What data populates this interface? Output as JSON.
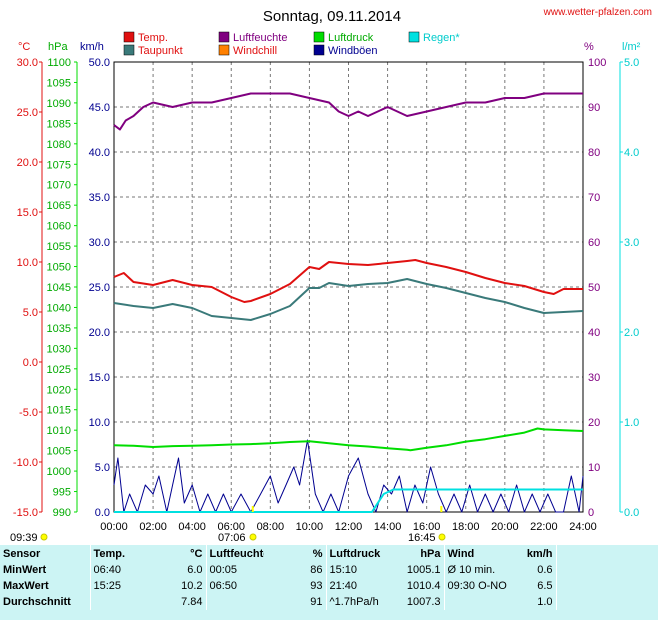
{
  "header": {
    "title": "Sonntag, 09.11.2014",
    "site": "www.wetter-pfalzen.com"
  },
  "legend": {
    "temp": "Temp.",
    "taupunkt": "Taupunkt",
    "luftfeuchte": "Luftfeuchte",
    "windchill": "Windchill",
    "luftdruck": "Luftdruck",
    "windboeen": "Windböen",
    "regen": "Regen*"
  },
  "colors": {
    "temp": "#e01010",
    "taupunkt": "#3a7a7a",
    "luftfeuchte": "#800080",
    "windchill": "#ff8000",
    "luftdruck": "#00dd00",
    "windboeen": "#000090",
    "regen": "#00e0e0",
    "sun": "#ffff00"
  },
  "axes": {
    "celsius_unit": "°C",
    "hpa_unit": "hPa",
    "kmh_unit": "km/h",
    "pct_unit": "%",
    "rain_unit": "l/m²",
    "celsius_ticks": [
      "30.0",
      "25.0",
      "20.0",
      "15.0",
      "10.0",
      "5.0",
      "0.0",
      "-5.0",
      "-10.0",
      "-15.0"
    ],
    "hpa_ticks": [
      "1100",
      "1095",
      "1090",
      "1085",
      "1080",
      "1075",
      "1070",
      "1065",
      "1060",
      "1055",
      "1050",
      "1045",
      "1040",
      "1035",
      "1030",
      "1025",
      "1020",
      "1015",
      "1010",
      "1005",
      "1000",
      "995",
      "990"
    ],
    "kmh_ticks": [
      "50.0",
      "45.0",
      "40.0",
      "35.0",
      "30.0",
      "25.0",
      "20.0",
      "15.0",
      "10.0",
      "5.0",
      "0.0"
    ],
    "pct_ticks": [
      "100",
      "90",
      "80",
      "70",
      "60",
      "50",
      "40",
      "30",
      "20",
      "10",
      "0"
    ],
    "rain_ticks": [
      "5.0",
      "4.0",
      "3.0",
      "2.0",
      "1.0",
      "0.0"
    ],
    "time_ticks": [
      "00:00",
      "02:00",
      "04:00",
      "06:00",
      "08:00",
      "10:00",
      "12:00",
      "14:00",
      "16:00",
      "18:00",
      "20:00",
      "22:00",
      "24:00"
    ]
  },
  "sun": {
    "sunrise": "07:06",
    "sunset": "16:45",
    "moonset": "09:39"
  },
  "chart_data": {
    "type": "line",
    "title": "Sonntag, 09.11.2014",
    "x_range": [
      "00:00",
      "24:00"
    ],
    "ylim_celsius": [
      -15,
      30
    ],
    "ylim_hpa": [
      990,
      1100
    ],
    "ylim_kmh": [
      0,
      50
    ],
    "ylim_pct": [
      0,
      100
    ],
    "ylim_rain": [
      0,
      5
    ],
    "grid": true,
    "legend_position": "top",
    "series": [
      {
        "name": "Temp.",
        "axis": "celsius",
        "x_hours": [
          0,
          0.5,
          1,
          2,
          3,
          4,
          5,
          6,
          6.67,
          7,
          8,
          9,
          10,
          10.5,
          11,
          12,
          13,
          14,
          15,
          15.42,
          16,
          17,
          18,
          19,
          20,
          21,
          22,
          22.5,
          23,
          24
        ],
        "values": [
          8.5,
          8.9,
          8.0,
          7.7,
          8.2,
          7.7,
          7.5,
          6.5,
          6.0,
          6.1,
          6.8,
          7.8,
          9.5,
          9.3,
          10.0,
          9.8,
          9.7,
          9.9,
          10.1,
          10.2,
          9.9,
          9.5,
          9.0,
          8.4,
          7.9,
          7.6,
          7.0,
          6.8,
          7.3,
          7.3
        ]
      },
      {
        "name": "Taupunkt",
        "axis": "celsius",
        "x_hours": [
          0,
          1,
          2,
          3,
          4,
          5,
          6,
          7,
          8,
          9,
          10,
          10.5,
          11,
          12,
          13,
          14,
          15,
          16,
          17,
          18,
          19,
          20,
          21,
          22,
          23,
          24
        ],
        "values": [
          5.9,
          5.6,
          5.4,
          5.8,
          5.4,
          4.6,
          4.4,
          4.2,
          4.8,
          5.6,
          7.4,
          7.4,
          7.9,
          7.6,
          7.8,
          7.9,
          8.3,
          7.8,
          7.4,
          6.9,
          6.4,
          6.0,
          5.4,
          4.9,
          5.0,
          5.1
        ]
      },
      {
        "name": "Luftfeuchte",
        "axis": "pct",
        "x_hours": [
          0,
          0.3,
          0.6,
          1,
          1.5,
          2,
          3,
          4,
          5,
          6,
          7,
          8,
          9,
          10,
          11,
          11.5,
          12,
          12.5,
          13,
          14,
          15,
          16,
          17,
          18,
          19,
          20,
          21,
          22,
          23,
          24
        ],
        "values": [
          86,
          85,
          87,
          88,
          90,
          91,
          90,
          91,
          91,
          92,
          93,
          93,
          93,
          92,
          91,
          89,
          88,
          89,
          88,
          90,
          88,
          89,
          90,
          91,
          91,
          92,
          92,
          93,
          93,
          93
        ]
      },
      {
        "name": "Luftdruck",
        "axis": "hpa",
        "x_hours": [
          0,
          1,
          2,
          3,
          4,
          5,
          6,
          7,
          8,
          9,
          10,
          11,
          12,
          13,
          14,
          15,
          15.17,
          16,
          17,
          18,
          19,
          20,
          21,
          21.67,
          22,
          23,
          24
        ],
        "values": [
          1006.3,
          1006.2,
          1005.9,
          1006.1,
          1006.2,
          1006.3,
          1006.5,
          1006.6,
          1006.8,
          1007.1,
          1007.3,
          1006.8,
          1006.3,
          1006.0,
          1005.6,
          1005.2,
          1005.1,
          1005.7,
          1006.3,
          1007.2,
          1007.8,
          1008.6,
          1009.4,
          1010.4,
          1010.2,
          1010.0,
          1009.8
        ]
      },
      {
        "name": "Windböen",
        "axis": "kmh",
        "x_hours": [
          0,
          0.2,
          0.5,
          0.8,
          1.2,
          1.6,
          2,
          2.3,
          2.7,
          3,
          3.3,
          3.6,
          4,
          4.4,
          4.8,
          5.2,
          5.6,
          6,
          6.5,
          7,
          7.5,
          8,
          8.4,
          8.8,
          9.2,
          9.5,
          9.9,
          10.3,
          10.7,
          11.1,
          11.5,
          12,
          12.5,
          13,
          13.4,
          13.8,
          14.2,
          14.6,
          15,
          15.4,
          15.8,
          16.2,
          16.6,
          17,
          17.4,
          17.8,
          18.2,
          18.6,
          19,
          19.4,
          19.8,
          20.2,
          20.6,
          21,
          21.4,
          21.8,
          22.2,
          22.6,
          23,
          23.4,
          23.8,
          24
        ],
        "values": [
          3,
          6,
          0,
          2,
          0,
          3,
          2,
          4,
          0,
          3,
          6,
          1,
          3,
          0,
          2,
          0,
          2,
          0,
          2,
          0,
          2,
          4,
          1,
          3,
          5,
          3,
          8,
          2,
          0,
          2,
          0,
          4,
          6,
          2,
          0,
          3,
          2,
          4,
          0,
          3,
          1,
          5,
          2,
          0,
          2,
          0,
          3,
          0,
          2,
          0,
          2,
          0,
          3,
          0,
          2,
          0,
          2,
          0,
          0,
          4,
          0,
          4
        ]
      },
      {
        "name": "Regen*",
        "axis": "rain",
        "x_hours": [
          0,
          13.2,
          13.8,
          14.3,
          16.5,
          24
        ],
        "values": [
          0,
          0,
          0.2,
          0.25,
          0.25,
          0.25
        ]
      }
    ]
  },
  "stats": {
    "headers": {
      "sensor": "Sensor",
      "temp": "Temp.",
      "temp_unit": "°C",
      "feuchte": "Luftfeuchte",
      "feuchte_unit": "%",
      "druck": "Luftdruck",
      "druck_unit": "hPa",
      "wind": "Wind",
      "wind_unit": "km/h"
    },
    "rows": [
      {
        "label": "MinWert",
        "t_time": "06:40",
        "t_val": "6.0",
        "f_time": "00:05",
        "f_val": "86",
        "d_time": "15:10",
        "d_val": "1005.1",
        "w_label": "Ø 10 min.",
        "w_val": "0.6"
      },
      {
        "label": "MaxWert",
        "t_time": "15:25",
        "t_val": "10.2",
        "f_time": "06:50",
        "f_val": "93",
        "d_time": "21:40",
        "d_val": "1010.4",
        "w_label": "09:30   O-NO",
        "w_val": "6.5"
      },
      {
        "label": "Durchschnitt",
        "t_time": "",
        "t_val": "7.84",
        "f_time": "",
        "f_val": "91",
        "d_time": "^1.7hPa/h",
        "d_val": "1007.3",
        "w_label": "",
        "w_val": "1.0"
      }
    ]
  }
}
